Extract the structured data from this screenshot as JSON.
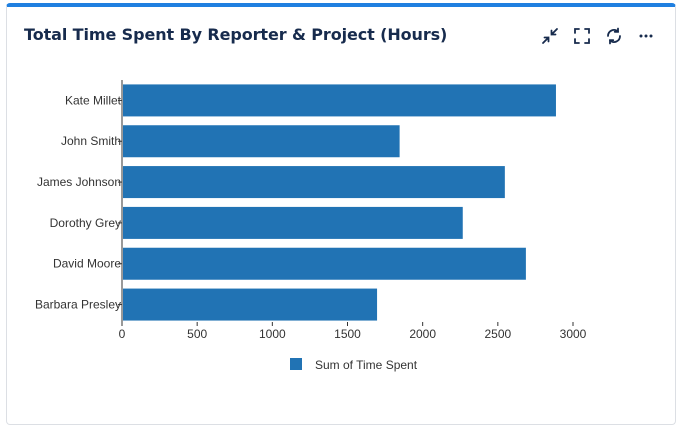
{
  "widget": {
    "title": "Total Time Spent By Reporter & Project (Hours)",
    "tools": [
      "minimize-icon",
      "fullscreen-icon",
      "refresh-icon",
      "more-icon"
    ]
  },
  "colors": {
    "accent": "#1f7fe0",
    "bar": "#2173b4",
    "title": "#172b4d"
  },
  "chart_data": {
    "type": "bar",
    "orientation": "horizontal",
    "categories": [
      "Kate Millet",
      "John Smith",
      "James Johnson",
      "Dorothy Grey",
      "David Moore",
      "Barbara Presley"
    ],
    "series": [
      {
        "name": "Sum of Time Spent",
        "values": [
          2880,
          1840,
          2540,
          2260,
          2680,
          1690
        ]
      }
    ],
    "xlim": [
      0,
      3100
    ],
    "xticks": [
      0,
      500,
      1000,
      1500,
      2000,
      2500,
      3000
    ],
    "grid": false,
    "legend_position": "bottom"
  }
}
